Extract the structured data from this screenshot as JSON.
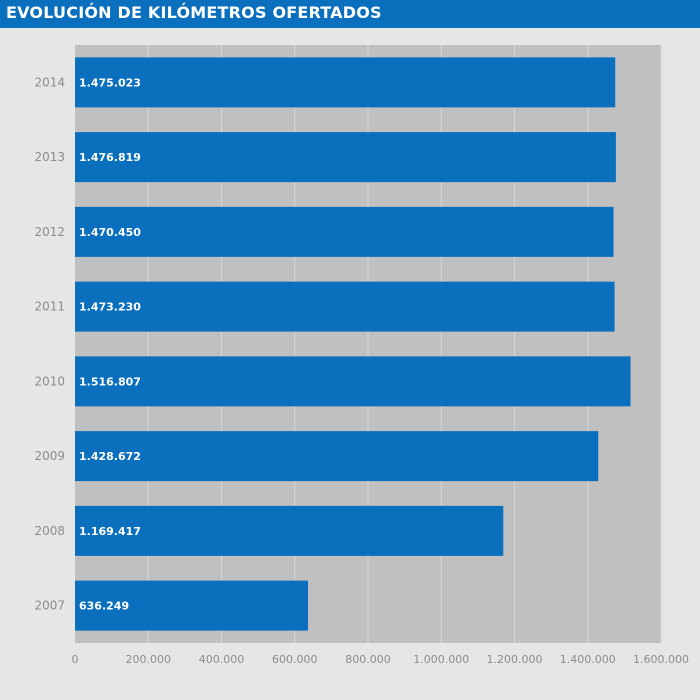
{
  "header": {
    "title": "EVOLUCIÓN DE KILÓMETROS OFERTADOS"
  },
  "colors": {
    "accent": "#0a6fbd",
    "plot_bg": "#c0c0c0",
    "page_bg": "#e6e6e6",
    "gridline": "#d6d6d6",
    "tick_text": "#8c8c8c"
  },
  "chart_data": {
    "type": "bar",
    "orientation": "horizontal",
    "title": "EVOLUCIÓN DE KILÓMETROS OFERTADOS",
    "xlabel": "",
    "ylabel": "",
    "categories": [
      "2014",
      "2013",
      "2012",
      "2011",
      "2010",
      "2009",
      "2008",
      "2007"
    ],
    "values": [
      1475023,
      1476819,
      1470450,
      1473230,
      1516807,
      1428672,
      1169417,
      636249
    ],
    "data_labels": [
      "1.475.023",
      "1.476.819",
      "1.470.450",
      "1.473.230",
      "1.516.807",
      "1.428.672",
      "1.169.417",
      "636.249"
    ],
    "xlim": [
      0,
      1600000
    ],
    "xticks": [
      0,
      200000,
      400000,
      600000,
      800000,
      1000000,
      1200000,
      1400000,
      1600000
    ],
    "xtick_labels": [
      "0",
      "200.000",
      "400.000",
      "600.000",
      "800.000",
      "1.000.000",
      "1.200.000",
      "1.400.000",
      "1.600.000"
    ],
    "grid": true,
    "legend": "none"
  }
}
